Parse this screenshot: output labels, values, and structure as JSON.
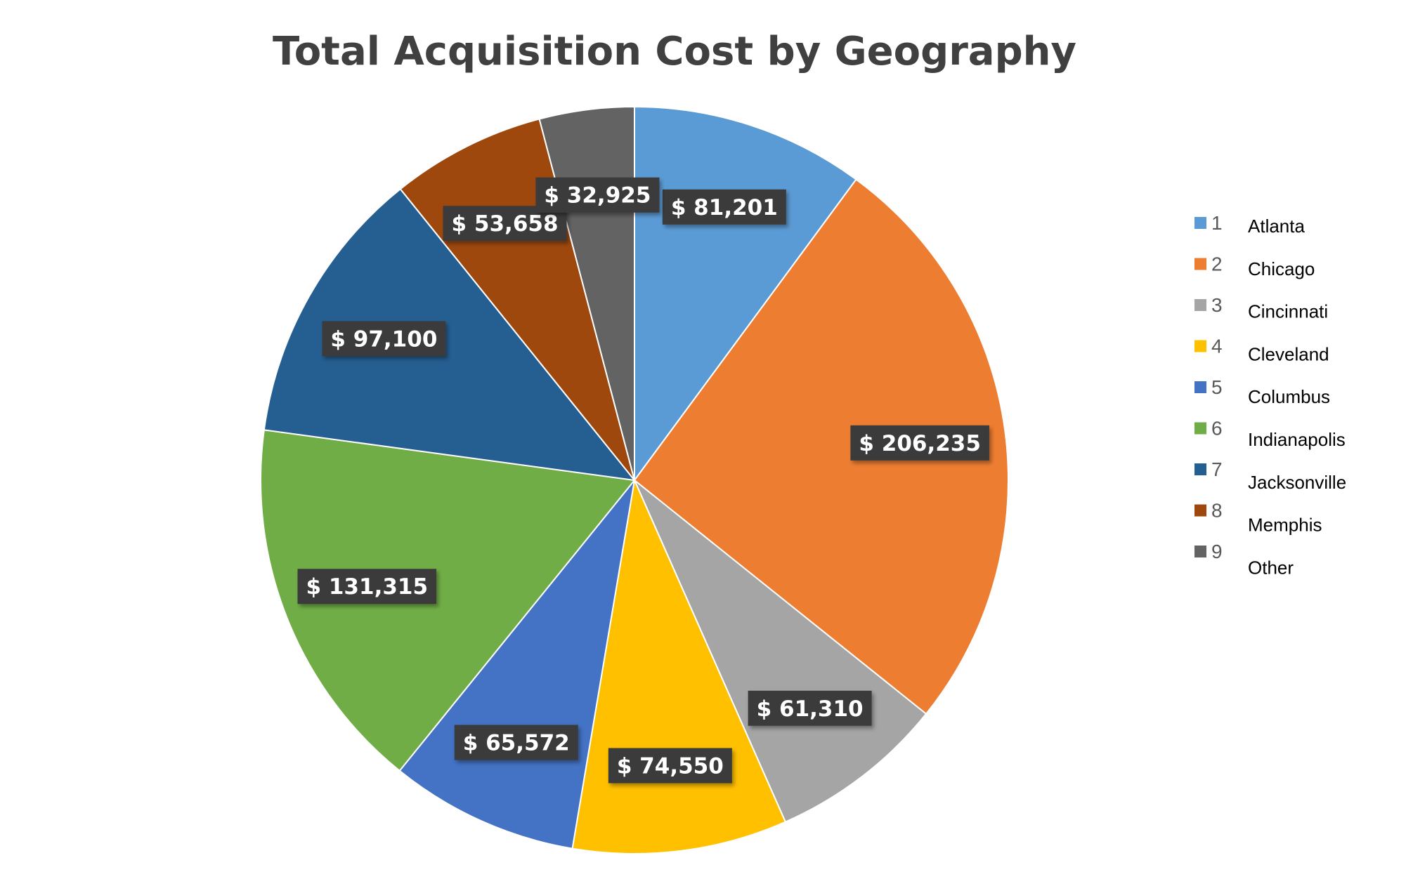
{
  "chart_data": {
    "type": "pie",
    "title": "Total Acquisition Cost by Geography",
    "categories": [
      "1",
      "2",
      "3",
      "4",
      "5",
      "6",
      "7",
      "8",
      "9"
    ],
    "category_names": [
      "Atlanta",
      "Chicago",
      "Cincinnati",
      "Cleveland",
      "Columbus",
      "Indianapolis",
      "Jacksonville",
      "Memphis",
      "Other"
    ],
    "values": [
      81201,
      206235,
      61310,
      74550,
      65572,
      131315,
      97100,
      53658,
      32925
    ],
    "data_labels": [
      "$ 81,201",
      "$ 206,235",
      "$ 61,310",
      "$ 74,550",
      "$ 65,572",
      "$ 131,315",
      "$ 97,100",
      "$ 53,658",
      "$ 32,925"
    ],
    "colors": [
      "#5b9bd5",
      "#ed7d31",
      "#a5a5a5",
      "#ffc000",
      "#4472c4",
      "#70ad47",
      "#255e91",
      "#9e480e",
      "#636363"
    ],
    "start_angle": "12 o'clock",
    "direction": "clockwise",
    "legend_position": "right"
  }
}
